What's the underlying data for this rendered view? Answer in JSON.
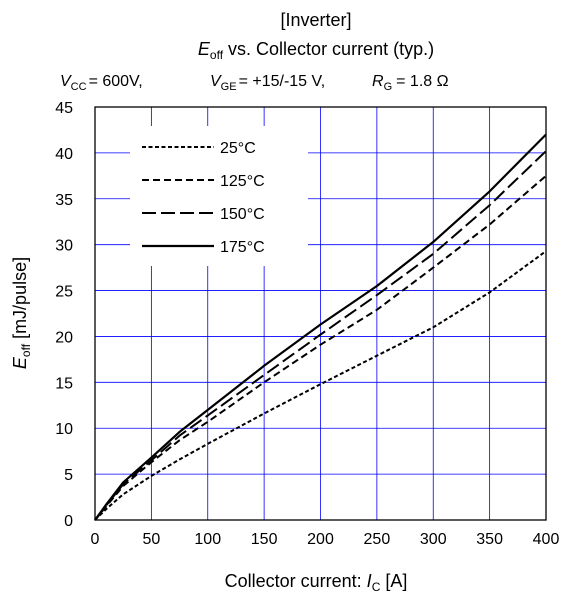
{
  "title": {
    "line1": "[Inverter]",
    "line2_main": "E",
    "line2_sub": "off",
    "line2_rest": " vs. Collector current  (typ.)"
  },
  "conditions": {
    "vcc_sym": "V",
    "vcc_sub": "CC",
    "vcc_val": "= 600V,",
    "vge_sym": "V",
    "vge_sub": "GE",
    "vge_val": "= +15/-15 V,",
    "rg_sym": "R",
    "rg_sub": "G",
    "rg_val": "=   1.8 Ω"
  },
  "axes": {
    "xlabel_main": "Collector current: ",
    "xlabel_sym": "I",
    "xlabel_sub": "C",
    "xlabel_unit": " [A]",
    "ylabel_sym": "E",
    "ylabel_sub": "off",
    "ylabel_unit": " [mJ/pulse]"
  },
  "colors": {
    "grid": "#0000ff",
    "line": "#000000",
    "frame": "#000000"
  },
  "chart_data": {
    "type": "line",
    "xlim": [
      0,
      400
    ],
    "ylim": [
      0,
      45
    ],
    "xticks": [
      0,
      50,
      100,
      150,
      200,
      250,
      300,
      350,
      400
    ],
    "yticks": [
      0,
      5,
      10,
      15,
      20,
      25,
      30,
      35,
      40,
      45
    ],
    "grid": true,
    "legend_position": "top-left",
    "series": [
      {
        "name": "25°C",
        "dash": "dotted",
        "x": [
          0,
          10,
          25,
          50,
          75,
          100,
          150,
          200,
          250,
          300,
          350,
          400
        ],
        "y": [
          0,
          1.2,
          2.8,
          4.8,
          6.6,
          8.3,
          11.6,
          14.8,
          17.9,
          21.0,
          24.8,
          29.3
        ]
      },
      {
        "name": "125°C",
        "dash": "short-dash",
        "x": [
          0,
          10,
          25,
          50,
          75,
          100,
          150,
          200,
          250,
          300,
          350,
          400
        ],
        "y": [
          0,
          1.5,
          3.7,
          6.3,
          8.7,
          10.7,
          15.0,
          19.1,
          22.9,
          27.5,
          32.2,
          37.5
        ]
      },
      {
        "name": "150°C",
        "dash": "long-dash",
        "x": [
          0,
          10,
          25,
          50,
          75,
          100,
          150,
          200,
          250,
          300,
          350,
          400
        ],
        "y": [
          0,
          1.6,
          3.9,
          6.5,
          9.2,
          11.4,
          15.8,
          20.2,
          24.5,
          29.0,
          34.3,
          40.2
        ]
      },
      {
        "name": "175°C",
        "dash": "solid",
        "x": [
          0,
          10,
          25,
          50,
          75,
          100,
          150,
          200,
          250,
          300,
          350,
          400
        ],
        "y": [
          0,
          1.7,
          4.1,
          6.8,
          9.6,
          12.0,
          16.8,
          21.3,
          25.5,
          30.3,
          35.8,
          42.0
        ]
      }
    ]
  }
}
